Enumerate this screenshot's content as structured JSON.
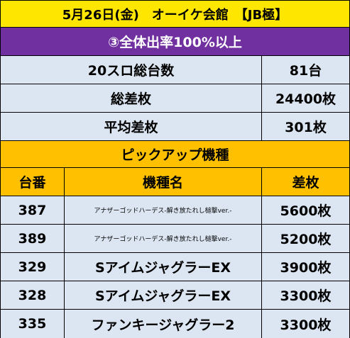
{
  "header": {
    "title": "5月26日(金)　オーイケ会館　【JB極】"
  },
  "subheader": {
    "text": "③全体出率100%以上"
  },
  "stats": [
    {
      "label": "20スロ総台数",
      "value": "81台"
    },
    {
      "label": "総差枚",
      "value": "24400枚"
    },
    {
      "label": "平均差枚",
      "value": "301枚"
    }
  ],
  "pickup": {
    "title": "ピックアップ機種"
  },
  "table": {
    "columns": [
      "台番",
      "機種名",
      "差枚"
    ],
    "rows": [
      {
        "num": "387",
        "name": "アナザーゴッドハーデス-解き放たれし槌撃ver.-",
        "diff": "5600枚"
      },
      {
        "num": "389",
        "name": "アナザーゴッドハーデス-解き放たれし槌撃ver.-",
        "diff": "5200枚"
      },
      {
        "num": "329",
        "name": "SアイムジャグラーEX",
        "diff": "3900枚"
      },
      {
        "num": "328",
        "name": "SアイムジャグラーEX",
        "diff": "3300枚"
      },
      {
        "num": "335",
        "name": "ファンキージャグラー2",
        "diff": "3300枚"
      }
    ]
  },
  "colors": {
    "title_bg": "#ffe600",
    "sub_bg": "#7030a0",
    "stat_bg": "#dce6f2",
    "pick_bg": "#ffc000"
  }
}
